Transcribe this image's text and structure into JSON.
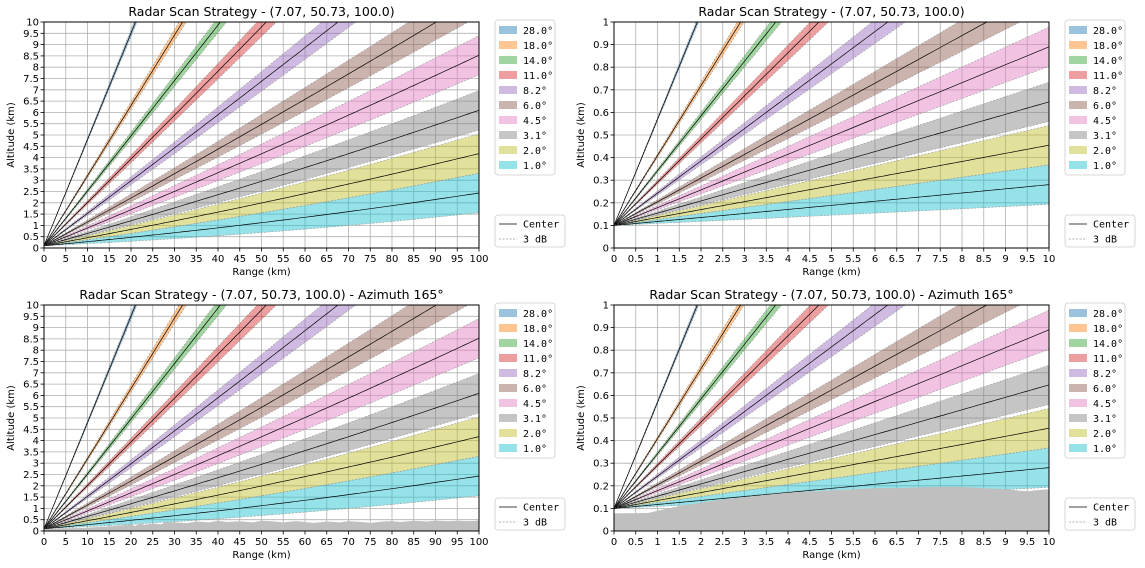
{
  "chart_data": [
    {
      "type": "area",
      "title": "Radar Scan Strategy - (7.07, 50.73, 100.0)",
      "xlabel": "Range (km)",
      "ylabel": "Altitude (km)",
      "xlim": [
        0,
        100
      ],
      "ylim": [
        0,
        10
      ],
      "xticks": [
        "0",
        "5",
        "10",
        "15",
        "20",
        "25",
        "30",
        "35",
        "40",
        "45",
        "50",
        "55",
        "60",
        "65",
        "70",
        "75",
        "80",
        "85",
        "90",
        "95",
        "100"
      ],
      "yticks": [
        "0",
        "0.5",
        "1",
        "1.5",
        "2",
        "2.5",
        "3",
        "3.5",
        "4",
        "4.5",
        "5",
        "5.5",
        "6",
        "6.5",
        "7",
        "7.5",
        "8",
        "8.5",
        "9",
        "9.5",
        "10"
      ],
      "grid": true,
      "radar_altitude_km": 0.1,
      "beamwidth_deg": 1.0,
      "elevations_deg": [
        28.0,
        18.0,
        14.0,
        11.0,
        8.2,
        6.0,
        4.5,
        3.1,
        2.0,
        1.0
      ],
      "legend_labels": [
        "28.0°",
        "18.0°",
        "14.0°",
        "11.0°",
        " 8.2°",
        " 6.0°",
        " 4.5°",
        " 3.1°",
        " 2.0°",
        " 1.0°"
      ],
      "legend_lines": [
        "Center",
        "3 dB"
      ],
      "legend_position": "outside-right",
      "terrain_x": [],
      "terrain_y": []
    },
    {
      "type": "area",
      "title": "Radar Scan Strategy - (7.07, 50.73, 100.0)",
      "xlabel": "Range (km)",
      "ylabel": "Altitude (km)",
      "xlim": [
        0,
        10
      ],
      "ylim": [
        0,
        1
      ],
      "xticks": [
        "0",
        "0.5",
        "1",
        "1.5",
        "2",
        "2.5",
        "3",
        "3.5",
        "4",
        "4.5",
        "5",
        "5.5",
        "6",
        "6.5",
        "7",
        "7.5",
        "8",
        "8.5",
        "9",
        "9.5",
        "10"
      ],
      "yticks": [
        "0",
        "0.1",
        "0.2",
        "0.3",
        "0.4",
        "0.5",
        "0.6",
        "0.7",
        "0.8",
        "0.9",
        "1"
      ],
      "grid": true,
      "radar_altitude_km": 0.1,
      "beamwidth_deg": 1.0,
      "elevations_deg": [
        28.0,
        18.0,
        14.0,
        11.0,
        8.2,
        6.0,
        4.5,
        3.1,
        2.0,
        1.0
      ],
      "legend_labels": [
        "28.0°",
        "18.0°",
        "14.0°",
        "11.0°",
        " 8.2°",
        " 6.0°",
        " 4.5°",
        " 3.1°",
        " 2.0°",
        " 1.0°"
      ],
      "legend_lines": [
        "Center",
        "3 dB"
      ],
      "legend_position": "outside-right",
      "terrain_x": [],
      "terrain_y": []
    },
    {
      "type": "area",
      "title": "Radar Scan Strategy - (7.07, 50.73, 100.0) - Azimuth 165°",
      "xlabel": "Range (km)",
      "ylabel": "Altitude (km)",
      "xlim": [
        0,
        100
      ],
      "ylim": [
        0,
        10
      ],
      "xticks": [
        "0",
        "5",
        "10",
        "15",
        "20",
        "25",
        "30",
        "35",
        "40",
        "45",
        "50",
        "55",
        "60",
        "65",
        "70",
        "75",
        "80",
        "85",
        "90",
        "95",
        "100"
      ],
      "yticks": [
        "0",
        "0.5",
        "1",
        "1.5",
        "2",
        "2.5",
        "3",
        "3.5",
        "4",
        "4.5",
        "5",
        "5.5",
        "6",
        "6.5",
        "7",
        "7.5",
        "8",
        "8.5",
        "9",
        "9.5",
        "10"
      ],
      "grid": true,
      "radar_altitude_km": 0.1,
      "beamwidth_deg": 1.0,
      "elevations_deg": [
        28.0,
        18.0,
        14.0,
        11.0,
        8.2,
        6.0,
        4.5,
        3.1,
        2.0,
        1.0
      ],
      "legend_labels": [
        "28.0°",
        "18.0°",
        "14.0°",
        "11.0°",
        " 8.2°",
        " 6.0°",
        " 4.5°",
        " 3.1°",
        " 2.0°",
        " 1.0°"
      ],
      "legend_lines": [
        "Center",
        "3 dB"
      ],
      "legend_position": "outside-right",
      "terrain_x": [
        0,
        2,
        5,
        8,
        10,
        13,
        15,
        18,
        20,
        21,
        22,
        23,
        25,
        27,
        28,
        30,
        33,
        35,
        38,
        40,
        42,
        45,
        48,
        50,
        53,
        55,
        58,
        60,
        62,
        65,
        68,
        70,
        73,
        75,
        78,
        80,
        82,
        85,
        88,
        90,
        93,
        95,
        98,
        100
      ],
      "terrain_y": [
        0.08,
        0.1,
        0.12,
        0.13,
        0.15,
        0.18,
        0.2,
        0.25,
        0.3,
        0.22,
        0.35,
        0.28,
        0.32,
        0.3,
        0.4,
        0.38,
        0.35,
        0.42,
        0.38,
        0.45,
        0.4,
        0.43,
        0.38,
        0.45,
        0.42,
        0.38,
        0.44,
        0.4,
        0.36,
        0.42,
        0.38,
        0.44,
        0.4,
        0.36,
        0.42,
        0.44,
        0.4,
        0.45,
        0.42,
        0.46,
        0.43,
        0.45,
        0.44,
        0.46
      ]
    },
    {
      "type": "area",
      "title": "Radar Scan Strategy - (7.07, 50.73, 100.0) - Azimuth 165°",
      "xlabel": "Range (km)",
      "ylabel": "Altitude (km)",
      "xlim": [
        0,
        10
      ],
      "ylim": [
        0,
        1
      ],
      "xticks": [
        "0",
        "0.5",
        "1",
        "1.5",
        "2",
        "2.5",
        "3",
        "3.5",
        "4",
        "4.5",
        "5",
        "5.5",
        "6",
        "6.5",
        "7",
        "7.5",
        "8",
        "8.5",
        "9",
        "9.5",
        "10"
      ],
      "yticks": [
        "0",
        "0.1",
        "0.2",
        "0.3",
        "0.4",
        "0.5",
        "0.6",
        "0.7",
        "0.8",
        "0.9",
        "1"
      ],
      "grid": true,
      "radar_altitude_km": 0.1,
      "beamwidth_deg": 1.0,
      "elevations_deg": [
        28.0,
        18.0,
        14.0,
        11.0,
        8.2,
        6.0,
        4.5,
        3.1,
        2.0,
        1.0
      ],
      "legend_labels": [
        "28.0°",
        "18.0°",
        "14.0°",
        "11.0°",
        " 8.2°",
        " 6.0°",
        " 4.5°",
        " 3.1°",
        " 2.0°",
        " 1.0°"
      ],
      "legend_lines": [
        "Center",
        "3 dB"
      ],
      "legend_position": "outside-right",
      "terrain_x": [
        0,
        0.8,
        1.0,
        1.5,
        2.0,
        2.5,
        3.0,
        3.5,
        4.0,
        4.5,
        5.0,
        5.5,
        6.0,
        6.5,
        7.0,
        7.5,
        8.0,
        8.5,
        9.0,
        9.5,
        9.7,
        10.0
      ],
      "terrain_y": [
        0.078,
        0.08,
        0.09,
        0.11,
        0.125,
        0.14,
        0.15,
        0.16,
        0.17,
        0.175,
        0.18,
        0.185,
        0.19,
        0.19,
        0.193,
        0.195,
        0.195,
        0.19,
        0.185,
        0.175,
        0.18,
        0.185
      ]
    }
  ],
  "colors": {
    "28.0°": "#1f77b4",
    "18.0°": "#ff7f0e",
    "14.0°": "#2ca02c",
    "11.0°": "#d62728",
    "8.2°": "#9467bd",
    "6.0°": "#8c564b",
    "4.5°": "#e377c2",
    "3.1°": "#7f7f7f",
    "2.0°": "#bcbd22",
    "1.0°": "#17becf",
    "terrain": "#bfbfbf",
    "center_line": "#000000",
    "db3_line": "#9a9a9a",
    "grid": "#b0b0b0"
  }
}
